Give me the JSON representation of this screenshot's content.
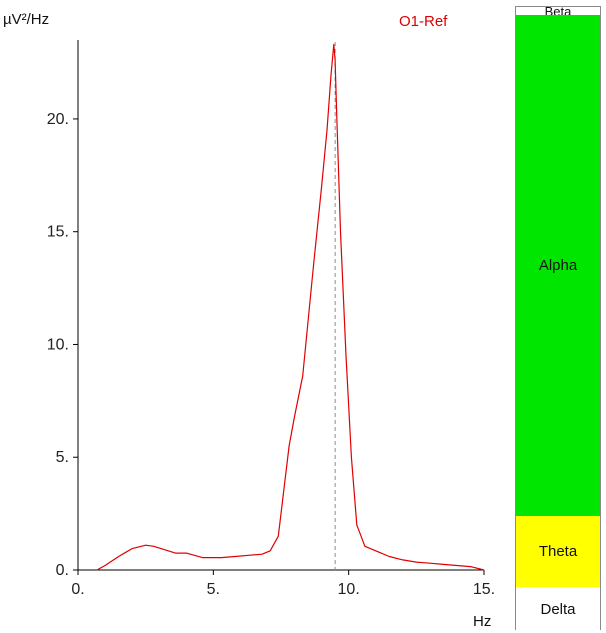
{
  "chart_data": {
    "type": "line",
    "title": "O1-Ref",
    "ylabel": "µV²/Hz",
    "xlabel": "Hz",
    "xlim": [
      0,
      15
    ],
    "ylim": [
      0,
      23.5
    ],
    "x_ticks": [
      "0.",
      "5.",
      "10.",
      "15."
    ],
    "y_ticks": [
      "0.",
      "5.",
      "10.",
      "15.",
      "20."
    ],
    "marker_x": 9.5,
    "series": [
      {
        "color": "#e00000",
        "x": [
          0.7,
          1.0,
          1.5,
          2.0,
          2.5,
          2.8,
          3.2,
          3.6,
          4.0,
          4.3,
          4.6,
          4.9,
          5.3,
          5.8,
          6.3,
          6.8,
          7.1,
          7.4,
          7.6,
          7.8,
          8.0,
          8.3,
          8.7,
          9.0,
          9.2,
          9.35,
          9.45,
          9.5,
          9.55,
          9.7,
          9.9,
          10.1,
          10.3,
          10.6,
          11.0,
          11.5,
          12.0,
          12.5,
          13.0,
          13.5,
          14.0,
          14.5,
          15.0
        ],
        "y": [
          0.0,
          0.2,
          0.6,
          0.95,
          1.1,
          1.05,
          0.9,
          0.75,
          0.75,
          0.65,
          0.55,
          0.55,
          0.55,
          0.6,
          0.65,
          0.7,
          0.85,
          1.5,
          3.5,
          5.5,
          6.8,
          8.6,
          13.5,
          17.0,
          19.5,
          22.0,
          23.3,
          22.6,
          20.5,
          15.0,
          9.5,
          5.0,
          2.0,
          1.05,
          0.85,
          0.6,
          0.45,
          0.35,
          0.3,
          0.25,
          0.2,
          0.15,
          0.0
        ]
      }
    ]
  },
  "bands": {
    "beta": "Beta",
    "alpha": "Alpha",
    "theta": "Theta",
    "delta": "Delta"
  },
  "colors": {
    "line": "#e00000",
    "title": "#dd0000",
    "alpha": "#00e600",
    "theta": "#ffff00",
    "delta": "#ffffff",
    "beta": "#ffffff",
    "marker": "#8c8c8c"
  }
}
